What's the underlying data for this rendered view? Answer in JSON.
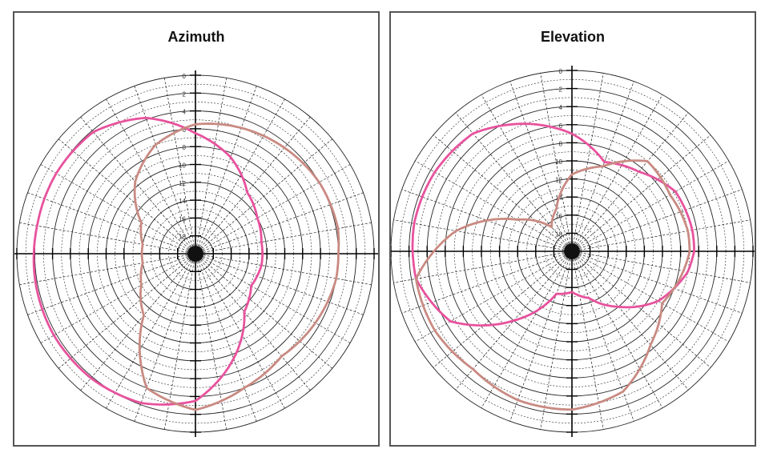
{
  "chart_data": [
    {
      "type": "polar-line",
      "title": "Azimuth",
      "radial_scale": "dB",
      "rlim": [
        -20,
        0
      ],
      "radial_ticks": [
        0,
        -2,
        -4,
        -6,
        -8,
        -10,
        -12,
        -14,
        -16,
        -18
      ],
      "radial_tick_labels": [
        "0",
        "2",
        "4",
        "6",
        "8",
        "10",
        "12",
        "14",
        "16",
        "18"
      ],
      "angle_step_deg": 10,
      "grid": true,
      "series": [
        {
          "color": "#e8529d",
          "theta_deg": [
            0,
            20,
            40,
            60,
            80,
            90,
            100,
            120,
            140,
            160,
            180,
            200,
            220,
            240,
            260,
            280,
            300,
            320,
            340,
            360
          ],
          "r_db": [
            -6.5,
            -8.5,
            -11,
            -12,
            -12.5,
            -12.5,
            -12.5,
            -12.8,
            -11.5,
            -7.5,
            -3.5,
            -2.2,
            -1.8,
            -1.7,
            -1.8,
            -2.0,
            -2.0,
            -2.2,
            -3.8,
            -6.5
          ]
        },
        {
          "color": "#c98a82",
          "theta_deg": [
            0,
            20,
            40,
            60,
            80,
            90,
            100,
            120,
            140,
            160,
            180,
            200,
            220,
            240,
            260,
            280,
            300,
            320,
            340,
            360
          ],
          "r_db": [
            -5.5,
            -5.0,
            -4.5,
            -4.0,
            -3.8,
            -4.0,
            -4.0,
            -4.5,
            -5.0,
            -4.0,
            -2.5,
            -4.0,
            -11.0,
            -13.0,
            -14.0,
            -14.0,
            -13.0,
            -9.5,
            -7.0,
            -5.5
          ]
        }
      ]
    },
    {
      "type": "polar-line",
      "title": "Elevation",
      "radial_scale": "dB",
      "rlim": [
        -20,
        0
      ],
      "radial_ticks": [
        0,
        -2,
        -4,
        -6,
        -8,
        -10,
        -12,
        -14,
        -16,
        -18
      ],
      "radial_tick_labels": [
        "0",
        "2",
        "4",
        "6",
        "8",
        "10",
        "12",
        "14",
        "16",
        "18"
      ],
      "angle_step_deg": 10,
      "grid": true,
      "series": [
        {
          "color": "#e8529d",
          "theta_deg": [
            0,
            20,
            40,
            60,
            80,
            90,
            100,
            120,
            140,
            160,
            180,
            200,
            220,
            240,
            260,
            280,
            300,
            320,
            340,
            360
          ],
          "r_db": [
            -7.0,
            -9.5,
            -8.5,
            -6.8,
            -6.5,
            -6.5,
            -7.0,
            -9.0,
            -12.0,
            -14.5,
            -15.5,
            -15.0,
            -10.0,
            -4.5,
            -2.5,
            -2.3,
            -2.5,
            -3.0,
            -5.0,
            -7.0
          ]
        },
        {
          "color": "#c98a82",
          "theta_deg": [
            0,
            20,
            40,
            60,
            80,
            90,
            100,
            120,
            140,
            160,
            180,
            200,
            220,
            240,
            260,
            280,
            300,
            320,
            340,
            360
          ],
          "r_db": [
            -11.5,
            -10.0,
            -7.0,
            -7.5,
            -7.0,
            -7.0,
            -7.5,
            -8.5,
            -6.5,
            -3.5,
            -2.5,
            -2.5,
            -3.0,
            -2.5,
            -2.5,
            -7.0,
            -13.0,
            -16.5,
            -15.0,
            -11.5
          ]
        }
      ]
    }
  ]
}
